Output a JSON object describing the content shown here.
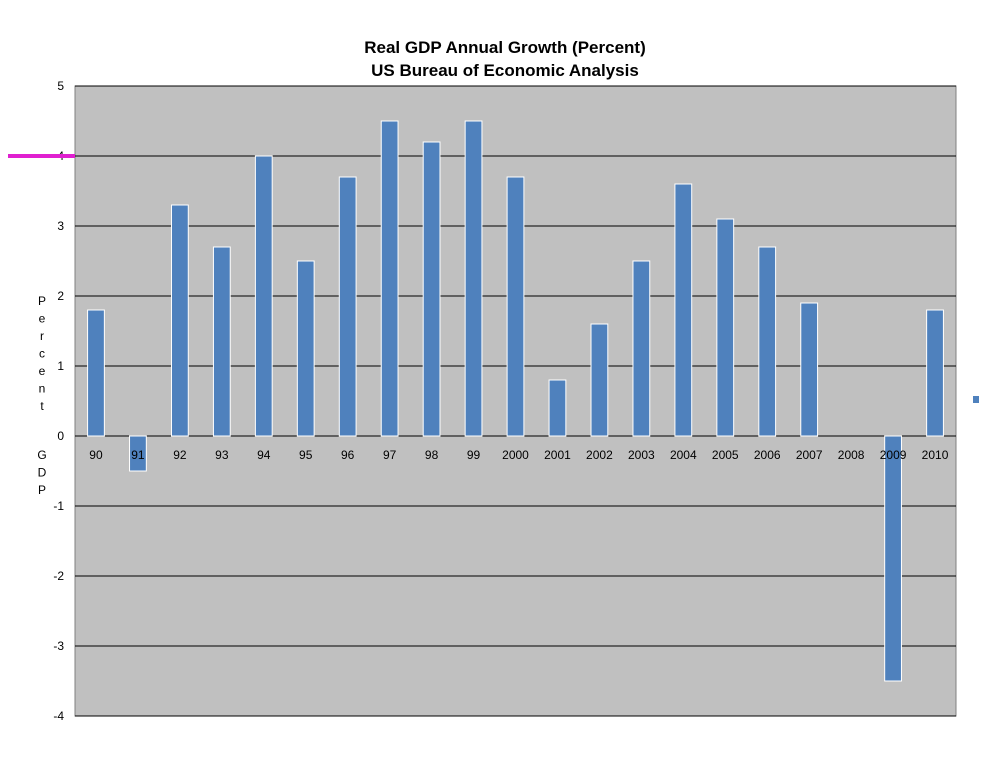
{
  "chart_data": {
    "type": "bar",
    "title": "Real GDP Annual Growth (Percent)",
    "subtitle": "US Bureau of Economic Analysis",
    "ylabel": "Percent GDP",
    "xlabel": "",
    "categories": [
      "90",
      "91",
      "92",
      "93",
      "94",
      "95",
      "96",
      "97",
      "98",
      "99",
      "2000",
      "2001",
      "2002",
      "2003",
      "2004",
      "2005",
      "2006",
      "2007",
      "2008",
      "2009",
      "2010"
    ],
    "values": [
      1.8,
      -0.5,
      3.3,
      2.7,
      4.0,
      2.5,
      3.7,
      4.5,
      4.2,
      4.5,
      3.7,
      0.8,
      1.6,
      2.5,
      3.6,
      3.1,
      2.7,
      1.9,
      0.0,
      -3.5,
      1.8
    ],
    "ylim": [
      -4,
      5
    ],
    "yticks": [
      -4,
      -3,
      -2,
      -1,
      0,
      1,
      2,
      3,
      4,
      5
    ],
    "grid": true,
    "legend": "right",
    "colors": {
      "plot_background": "#c0c0c0",
      "bar_fill": "#4f81bd",
      "gridline": "#000000",
      "highlight_marker": "#e020d0"
    },
    "highlight_value": 4
  }
}
